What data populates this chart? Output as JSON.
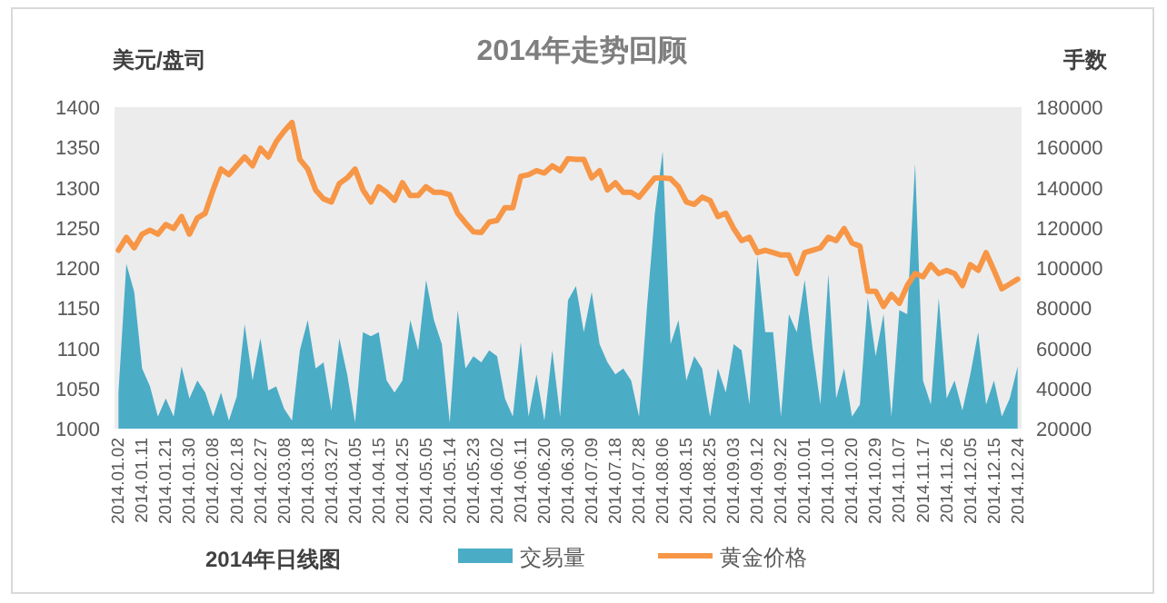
{
  "chart_data": {
    "type": "line",
    "title": "2014年走势回顾",
    "ylabel": "美元/盘司",
    "y2label": "手数",
    "annotations": [
      "2014年日线图"
    ],
    "categories": [
      "2014.01.02",
      null,
      null,
      "2014.01.11",
      null,
      null,
      "2014.01.21",
      null,
      null,
      "2014.01.30",
      null,
      null,
      "2014.02.08",
      null,
      null,
      "2014.02.18",
      null,
      null,
      "2014.02.27",
      null,
      null,
      "2014.03.08",
      null,
      null,
      "2014.03.18",
      null,
      null,
      "2014.03.27",
      null,
      null,
      "2014.04.05",
      null,
      null,
      "2014.04.15",
      null,
      null,
      "2014.04.25",
      null,
      null,
      "2014.05.05",
      null,
      null,
      "2014.05.14",
      null,
      null,
      "2014.05.23",
      null,
      null,
      "2014.06.02",
      null,
      null,
      "2014.06.11",
      null,
      null,
      "2014.06.20",
      null,
      null,
      "2014.06.30",
      null,
      null,
      "2014.07.09",
      null,
      null,
      "2014.07.18",
      null,
      null,
      "2014.07.28",
      null,
      null,
      "2014.08.06",
      null,
      null,
      "2014.08.15",
      null,
      null,
      "2014.08.25",
      null,
      null,
      "2014.09.03",
      null,
      null,
      "2014.09.12",
      null,
      null,
      "2014.09.22",
      null,
      null,
      "2014.10.01",
      null,
      null,
      "2014.10.10",
      null,
      null,
      "2014.10.20",
      null,
      null,
      "2014.10.29",
      null,
      null,
      "2014.11.07",
      null,
      null,
      "2014.11.17",
      null,
      null,
      "2014.11.26",
      null,
      null,
      "2014.12.05",
      null,
      null,
      "2014.12.15",
      null,
      null,
      "2014.12.24"
    ],
    "series": [
      {
        "name": "交易量",
        "type": "area",
        "axis": "y2",
        "color": "#4bacc6",
        "values": [
          38000,
          102000,
          88000,
          50000,
          41000,
          26000,
          35000,
          26000,
          51000,
          35000,
          44000,
          38000,
          26000,
          38000,
          24000,
          36000,
          72000,
          44000,
          65000,
          39000,
          41000,
          30000,
          24000,
          59000,
          74000,
          50000,
          53000,
          29000,
          65000,
          47000,
          23000,
          68000,
          66000,
          68000,
          44000,
          38000,
          44000,
          74000,
          59000,
          94000,
          74000,
          62000,
          23000,
          79000,
          50000,
          56000,
          53000,
          59000,
          56000,
          35000,
          26000,
          63000,
          26000,
          47000,
          24000,
          59000,
          26000,
          84000,
          91000,
          68000,
          88000,
          62000,
          53000,
          47000,
          50000,
          44000,
          26000,
          80000,
          127000,
          158000,
          62000,
          74000,
          44000,
          56000,
          50000,
          26000,
          50000,
          38000,
          62000,
          59000,
          32000,
          106000,
          68000,
          68000,
          26000,
          77000,
          68000,
          94000,
          60000,
          32000,
          97000,
          35000,
          50000,
          26000,
          32000,
          85000,
          56000,
          77000,
          26000,
          79000,
          77000,
          152000,
          44000,
          32000,
          85000,
          35000,
          44000,
          29000,
          47000,
          68000,
          32000,
          44000,
          26000,
          35000,
          51000
        ]
      },
      {
        "name": "黄金价格",
        "color": "#f79646",
        "values": [
          1222,
          1238,
          1225,
          1242,
          1247,
          1242,
          1254,
          1249,
          1264,
          1242,
          1262,
          1268,
          1297,
          1323,
          1316,
          1327,
          1338,
          1327,
          1349,
          1338,
          1357,
          1370,
          1381,
          1335,
          1323,
          1297,
          1286,
          1282,
          1305,
          1312,
          1323,
          1297,
          1282,
          1301,
          1294,
          1284,
          1306,
          1290,
          1290,
          1301,
          1294,
          1294,
          1291,
          1268,
          1256,
          1245,
          1244,
          1257,
          1259,
          1275,
          1275,
          1314,
          1316,
          1321,
          1318,
          1327,
          1321,
          1336,
          1335,
          1335,
          1312,
          1321,
          1297,
          1306,
          1294,
          1294,
          1288,
          1300,
          1312,
          1312,
          1311,
          1301,
          1282,
          1279,
          1288,
          1284,
          1264,
          1268,
          1249,
          1234,
          1238,
          1219,
          1222,
          1219,
          1216,
          1216,
          1193,
          1219,
          1222,
          1225,
          1238,
          1234,
          1249,
          1231,
          1227,
          1171,
          1171,
          1152,
          1167,
          1156,
          1178,
          1193,
          1189,
          1204,
          1193,
          1197,
          1193,
          1178,
          1204,
          1197,
          1219,
          1197,
          1174,
          1180,
          1186
        ]
      }
    ],
    "ylim": [
      1000,
      1400
    ],
    "yticks": [
      1000,
      1050,
      1100,
      1150,
      1200,
      1250,
      1300,
      1350,
      1400
    ],
    "y2lim": [
      20000,
      180000
    ],
    "y2ticks": [
      20000,
      40000,
      60000,
      80000,
      100000,
      120000,
      140000,
      160000,
      180000
    ],
    "legend": "bottom"
  }
}
